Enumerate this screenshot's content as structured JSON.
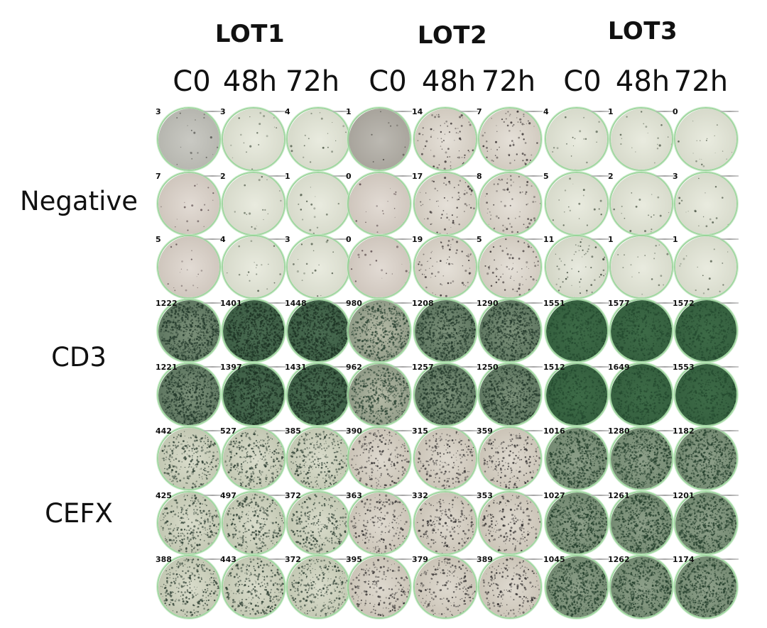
{
  "lots": [
    "LOT1",
    "LOT2",
    "LOT3"
  ],
  "columns": [
    "C0",
    "48h",
    "72h",
    "C0",
    "48h",
    "72h",
    "C0",
    "48h",
    "72h"
  ],
  "row_groups": [
    {
      "label": "Negative",
      "rows": [
        0,
        1,
        2
      ]
    },
    {
      "label": "CD3",
      "rows": [
        3,
        4
      ]
    },
    {
      "label": "CEFX",
      "rows": [
        5,
        6,
        7
      ]
    }
  ],
  "wells": [
    [
      {
        "count": "3",
        "tone": "gray-blank"
      },
      {
        "count": "3",
        "tone": "pale-blank"
      },
      {
        "count": "4",
        "tone": "pale-blank"
      },
      {
        "count": "1",
        "tone": "dark-gray-blank"
      },
      {
        "count": "14",
        "tone": "pink-sparse"
      },
      {
        "count": "7",
        "tone": "pink-sparse"
      },
      {
        "count": "4",
        "tone": "pale-blank"
      },
      {
        "count": "1",
        "tone": "pale-blank"
      },
      {
        "count": "0",
        "tone": "pale-blank"
      }
    ],
    [
      {
        "count": "7",
        "tone": "pink-blank"
      },
      {
        "count": "2",
        "tone": "pale-blank"
      },
      {
        "count": "1",
        "tone": "pale-blank"
      },
      {
        "count": "0",
        "tone": "pink-blank"
      },
      {
        "count": "17",
        "tone": "pink-sparse"
      },
      {
        "count": "8",
        "tone": "pink-sparse"
      },
      {
        "count": "5",
        "tone": "pale-blank"
      },
      {
        "count": "2",
        "tone": "pale-blank"
      },
      {
        "count": "3",
        "tone": "pale-blank"
      }
    ],
    [
      {
        "count": "5",
        "tone": "pink-blank"
      },
      {
        "count": "4",
        "tone": "pale-blank"
      },
      {
        "count": "3",
        "tone": "pale-blank"
      },
      {
        "count": "0",
        "tone": "pink-blank"
      },
      {
        "count": "19",
        "tone": "pink-sparse"
      },
      {
        "count": "5",
        "tone": "pink-sparse"
      },
      {
        "count": "11",
        "tone": "pale-sparse"
      },
      {
        "count": "1",
        "tone": "pale-blank"
      },
      {
        "count": "1",
        "tone": "pale-blank"
      }
    ],
    [
      {
        "count": "1222",
        "tone": "green-medium"
      },
      {
        "count": "1401",
        "tone": "green-dark"
      },
      {
        "count": "1448",
        "tone": "green-dark"
      },
      {
        "count": "980",
        "tone": "green-light"
      },
      {
        "count": "1208",
        "tone": "green-medium"
      },
      {
        "count": "1290",
        "tone": "green-medium"
      },
      {
        "count": "1551",
        "tone": "green-solid"
      },
      {
        "count": "1577",
        "tone": "green-solid"
      },
      {
        "count": "1572",
        "tone": "green-solid"
      }
    ],
    [
      {
        "count": "1221",
        "tone": "green-medium"
      },
      {
        "count": "1397",
        "tone": "green-dark"
      },
      {
        "count": "1431",
        "tone": "green-dark"
      },
      {
        "count": "962",
        "tone": "green-light"
      },
      {
        "count": "1257",
        "tone": "green-medium"
      },
      {
        "count": "1250",
        "tone": "green-medium"
      },
      {
        "count": "1512",
        "tone": "green-solid"
      },
      {
        "count": "1649",
        "tone": "green-solid"
      },
      {
        "count": "1553",
        "tone": "green-solid"
      }
    ],
    [
      {
        "count": "442",
        "tone": "speckled"
      },
      {
        "count": "527",
        "tone": "speckled"
      },
      {
        "count": "385",
        "tone": "speckled"
      },
      {
        "count": "390",
        "tone": "speckled-pink"
      },
      {
        "count": "315",
        "tone": "speckled-pink"
      },
      {
        "count": "359",
        "tone": "speckled-pink"
      },
      {
        "count": "1016",
        "tone": "speckled-green"
      },
      {
        "count": "1280",
        "tone": "speckled-green"
      },
      {
        "count": "1182",
        "tone": "speckled-green"
      }
    ],
    [
      {
        "count": "425",
        "tone": "speckled"
      },
      {
        "count": "497",
        "tone": "speckled"
      },
      {
        "count": "372",
        "tone": "speckled"
      },
      {
        "count": "363",
        "tone": "speckled-pink"
      },
      {
        "count": "332",
        "tone": "speckled-pink"
      },
      {
        "count": "353",
        "tone": "speckled-pink"
      },
      {
        "count": "1027",
        "tone": "speckled-green"
      },
      {
        "count": "1261",
        "tone": "speckled-green"
      },
      {
        "count": "1201",
        "tone": "speckled-green"
      }
    ],
    [
      {
        "count": "388",
        "tone": "speckled"
      },
      {
        "count": "443",
        "tone": "speckled"
      },
      {
        "count": "372",
        "tone": "speckled"
      },
      {
        "count": "395",
        "tone": "speckled-pink"
      },
      {
        "count": "379",
        "tone": "speckled-pink"
      },
      {
        "count": "389",
        "tone": "speckled-pink"
      },
      {
        "count": "1045",
        "tone": "speckled-green"
      },
      {
        "count": "1262",
        "tone": "speckled-green"
      },
      {
        "count": "1174",
        "tone": "speckled-green"
      }
    ]
  ],
  "palette": {
    "gray-blank": {
      "bg": "#c9c9c3",
      "edge": "#b6b6af",
      "spot": "#5a5a55",
      "density": 0.02
    },
    "dark-gray-blank": {
      "bg": "#bcb9b2",
      "edge": "#a8a49c",
      "spot": "#55524c",
      "density": 0.01
    },
    "pale-blank": {
      "bg": "#e9ebdf",
      "edge": "#d7dacb",
      "spot": "#555f4f",
      "density": 0.02
    },
    "pale-sparse": {
      "bg": "#e8eadf",
      "edge": "#d3d6c6",
      "spot": "#3f4a3c",
      "density": 0.06
    },
    "pink-blank": {
      "bg": "#e2dbd4",
      "edge": "#cfc6bd",
      "spot": "#5e4f50",
      "density": 0.02
    },
    "pink-sparse": {
      "bg": "#e5e0d8",
      "edge": "#d1cabf",
      "spot": "#3b3434",
      "density": 0.08
    },
    "green-light": {
      "bg": "#b6bba7",
      "edge": "#8f9a86",
      "spot": "#2c4434",
      "density": 0.55
    },
    "green-medium": {
      "bg": "#7b9079",
      "edge": "#5f7761",
      "spot": "#23392b",
      "density": 0.75
    },
    "green-dark": {
      "bg": "#4a6c52",
      "edge": "#3e5f46",
      "spot": "#1d3324",
      "density": 0.9
    },
    "green-solid": {
      "bg": "#3d6b47",
      "edge": "#35603f",
      "spot": "#244a2f",
      "density": 0.5
    },
    "speckled": {
      "bg": "#d9dccb",
      "edge": "#c3c8b3",
      "spot": "#2e3f33",
      "density": 0.32
    },
    "speckled-pink": {
      "bg": "#ded9cf",
      "edge": "#cbc4b7",
      "spot": "#333030",
      "density": 0.22
    },
    "speckled-green": {
      "bg": "#8ea08a",
      "edge": "#748a72",
      "spot": "#25402d",
      "density": 0.7
    }
  }
}
